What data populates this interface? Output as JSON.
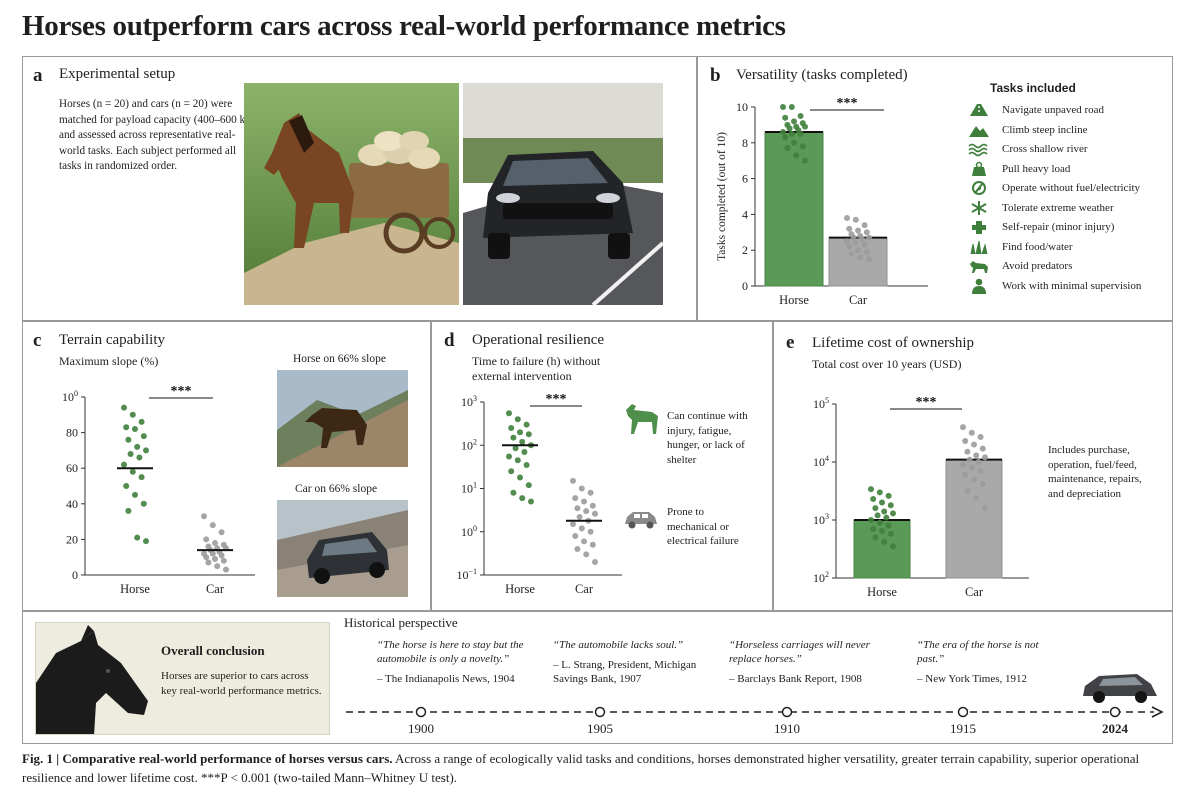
{
  "title": "Horses outperform cars across real-world performance metrics",
  "colors": {
    "horse": "#5a9a57",
    "horse_dot": "#3f7f3c",
    "car": "#a9a9a9",
    "car_dot": "#9b9b9b"
  },
  "panel_a": {
    "letter": "a",
    "title": "Experimental setup",
    "text": "Horses (n = 20) and cars (n = 20) were matched for payload capacity (400–600 kg) and assessed across representative real-world tasks. Each subject performed all tasks in randomized order.",
    "images": [
      "horse pulling cart",
      "car on road"
    ]
  },
  "panel_b": {
    "letter": "b",
    "title": "Versatility (tasks completed)",
    "tasks_title": "Tasks included",
    "tasks": [
      {
        "icon": "road-icon",
        "label": "Navigate unpaved road"
      },
      {
        "icon": "mountain-icon",
        "label": "Climb steep incline"
      },
      {
        "icon": "water-icon",
        "label": "Cross shallow river"
      },
      {
        "icon": "weight-icon",
        "label": "Pull heavy load"
      },
      {
        "icon": "no-fuel-icon",
        "label": "Operate without fuel/electricity"
      },
      {
        "icon": "snowflake-icon",
        "label": "Tolerate extreme weather"
      },
      {
        "icon": "plus-icon",
        "label": "Self-repair (minor injury)"
      },
      {
        "icon": "grass-icon",
        "label": "Find food/water"
      },
      {
        "icon": "animal-icon",
        "label": "Avoid predators"
      },
      {
        "icon": "person-icon",
        "label": "Work with minimal supervision"
      }
    ]
  },
  "panel_c": {
    "letter": "c",
    "title": "Terrain capability",
    "images": [
      {
        "label": "Horse on 66% slope"
      },
      {
        "label": "Car on 66% slope"
      }
    ]
  },
  "panel_d": {
    "letter": "d",
    "title": "Operational resilience",
    "notes": [
      {
        "icon": "horse-icon",
        "text": "Can continue with injury, fatigue, hunger, or lack of shelter"
      },
      {
        "icon": "car-icon",
        "text": "Prone to mechanical or electrical failure"
      }
    ]
  },
  "panel_e": {
    "letter": "e",
    "title": "Lifetime cost of ownership",
    "note": "Includes purchase, operation, fuel/feed, maintenance, repairs, and depreciation"
  },
  "conclusion": {
    "title": "Overall conclusion",
    "text": "Horses are superior to cars across key real-world performance metrics."
  },
  "history": {
    "title": "Historical perspective",
    "quotes": [
      {
        "text": "“The horse is here to stay but the automobile is only a novelty.”",
        "source": "– The Indianapolis News, 1904"
      },
      {
        "text": "“The automobile lacks soul.”",
        "source": "– L. Strang, President, Michigan Savings Bank, 1907"
      },
      {
        "text": "“Horseless carriages will never replace horses.”",
        "source": "– Barclays Bank Report, 1908"
      },
      {
        "text": "“The era of the horse is not past.”",
        "source": "– New York Times, 1912"
      }
    ],
    "years": [
      "1900",
      "1905",
      "1910",
      "1915",
      "2024"
    ]
  },
  "caption": {
    "bold": "Fig. 1 | Comparative real-world performance of horses versus cars.",
    "text": " Across a range of ecologically valid tasks and conditions, horses demonstrated higher versatility, greater terrain capability, superior operational resilience and lower lifetime cost. ***P < 0.001 (two-tailed Mann–Whitney U test)."
  },
  "chart_data": [
    {
      "id": "b",
      "type": "bar",
      "categories": [
        "Horse",
        "Car"
      ],
      "values": [
        8.6,
        2.7
      ],
      "ylabel": "Tasks completed (out of 10)",
      "ylim": [
        0,
        10
      ],
      "yticks": [
        "0",
        "2",
        "4",
        "6",
        "8",
        "10"
      ],
      "points": [
        [
          10,
          10,
          9.5,
          9.4,
          9.2,
          9.1,
          9,
          8.9,
          8.9,
          8.8,
          8.7,
          8.6,
          8.5,
          8.5,
          8.3,
          8,
          7.8,
          7.7,
          7.3,
          7
        ],
        [
          3.8,
          3.7,
          3.4,
          3.2,
          3.1,
          3,
          2.9,
          2.8,
          2.7,
          2.7,
          2.6,
          2.5,
          2.4,
          2.3,
          2.2,
          2,
          1.9,
          1.8,
          1.6,
          1.5
        ]
      ],
      "significance": "***"
    },
    {
      "id": "c",
      "type": "scatter",
      "subtitle": "Maximum slope (%)",
      "categories": [
        "Horse",
        "Car"
      ],
      "means": [
        60,
        14
      ],
      "ylim": [
        0,
        100
      ],
      "yticks": [
        "0",
        "20",
        "40",
        "60",
        "80",
        "100"
      ],
      "points": [
        [
          94,
          90,
          86,
          83,
          82,
          78,
          76,
          72,
          70,
          68,
          66,
          62,
          58,
          55,
          50,
          45,
          40,
          36,
          21,
          19
        ],
        [
          33,
          28,
          24,
          20,
          18,
          17,
          16,
          15,
          15,
          14,
          13,
          12,
          12,
          11,
          10,
          9,
          8,
          7,
          5,
          3
        ]
      ],
      "significance": "***"
    },
    {
      "id": "d",
      "type": "scatter",
      "subtitle": "Time to failure (h) without external intervention",
      "categories": [
        "Horse",
        "Car"
      ],
      "scale": "log",
      "ylim": [
        0.1,
        1000
      ],
      "yticks": [
        "10−1",
        "100",
        "101",
        "102",
        "103"
      ],
      "means": [
        100,
        1.8
      ],
      "points": [
        [
          550,
          400,
          300,
          250,
          200,
          180,
          150,
          120,
          100,
          85,
          70,
          55,
          45,
          35,
          25,
          18,
          12,
          8,
          6,
          5
        ],
        [
          15,
          10,
          8,
          6,
          5,
          4,
          3.5,
          3,
          2.6,
          2.2,
          1.8,
          1.5,
          1.2,
          1,
          0.8,
          0.6,
          0.5,
          0.4,
          0.3,
          0.2
        ]
      ],
      "significance": "***"
    },
    {
      "id": "e",
      "type": "bar",
      "subtitle": "Total cost over 10 years (USD)",
      "categories": [
        "Horse",
        "Car"
      ],
      "scale": "log",
      "ylim": [
        100,
        100000
      ],
      "yticks": [
        "102",
        "103",
        "104",
        "105"
      ],
      "values": [
        1000,
        11000
      ],
      "points": [
        [
          3400,
          3000,
          2600,
          2300,
          2000,
          1800,
          1600,
          1400,
          1300,
          1200,
          1100,
          1000,
          900,
          800,
          700,
          650,
          580,
          500,
          420,
          350
        ],
        [
          40000,
          32000,
          27000,
          23000,
          20000,
          17000,
          15000,
          13000,
          12000,
          11000,
          10000,
          9000,
          8000,
          7000,
          6000,
          5000,
          4200,
          3200,
          2400,
          1600
        ]
      ],
      "significance": "***"
    }
  ]
}
